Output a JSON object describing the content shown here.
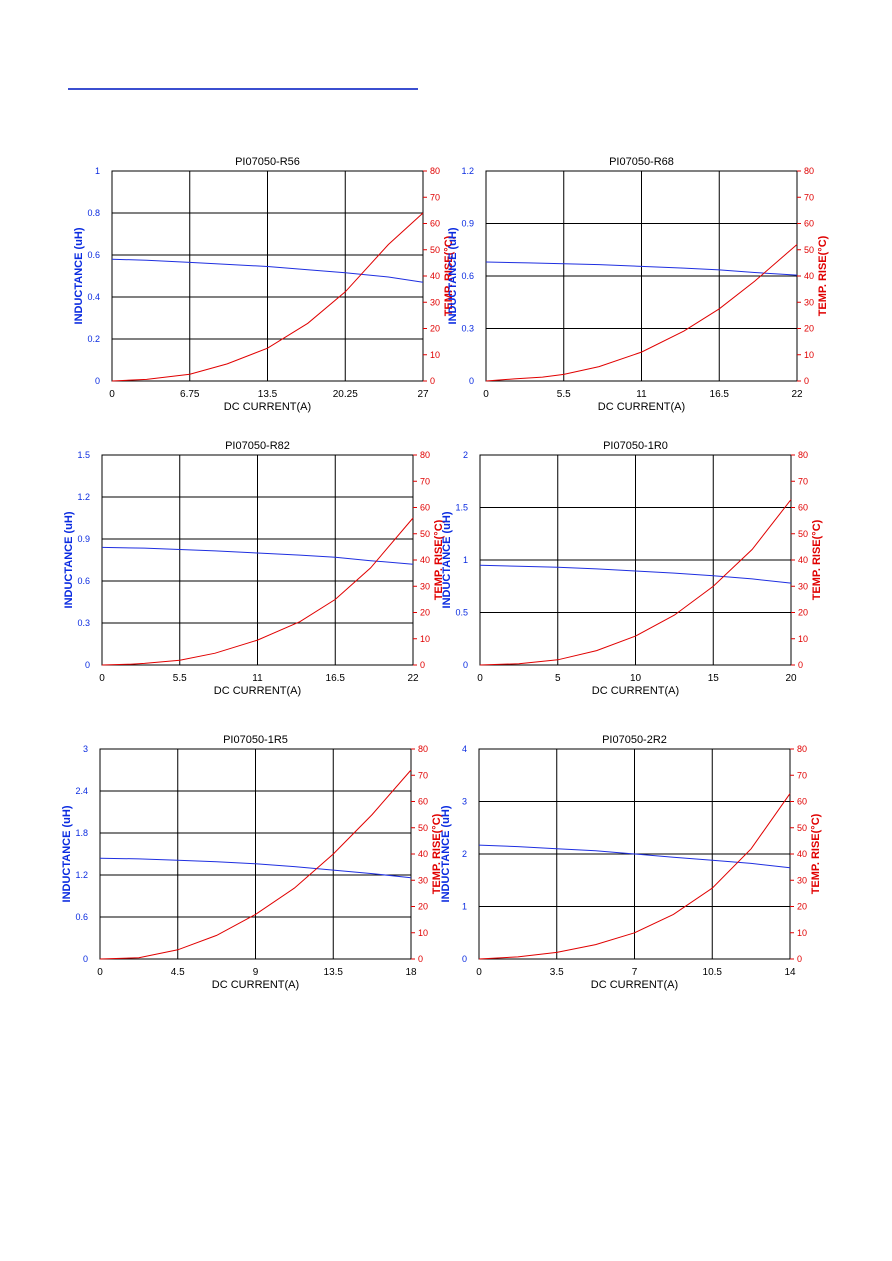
{
  "chart_data": [
    {
      "type": "line",
      "title": "PI07050-R56",
      "xlabel": "DC CURRENT(A)",
      "ylabel": "INDUCTANCE (uH)",
      "ylabel_right": "TEMP. RISE(°C)",
      "xlim": [
        0,
        27
      ],
      "ylim": [
        0,
        1
      ],
      "ylim_right": [
        0,
        80
      ],
      "x_ticks": [
        "0",
        "6.75",
        "13.5",
        "20.25",
        "27"
      ],
      "y_ticks": [
        "0",
        "0.2",
        "0.4",
        "0.6",
        "0.8",
        "1"
      ],
      "y_ticks_right": [
        "0",
        "10",
        "20",
        "30",
        "40",
        "50",
        "60",
        "70",
        "80"
      ],
      "grid": true,
      "series": [
        {
          "axis": "left",
          "color": "#1f2fe0",
          "x": [
            0,
            3,
            6.75,
            10,
            13.5,
            17,
            20.25,
            24,
            27
          ],
          "values": [
            0.58,
            0.575,
            0.565,
            0.555,
            0.545,
            0.53,
            0.515,
            0.495,
            0.47
          ]
        },
        {
          "axis": "right",
          "color": "#e00000",
          "x": [
            0,
            3,
            6.75,
            10,
            13.5,
            17,
            20.25,
            24,
            27
          ],
          "values": [
            0,
            0.6,
            2.6,
            6.5,
            12.5,
            22,
            34,
            52,
            64
          ]
        }
      ]
    },
    {
      "type": "line",
      "title": "PI07050-R68",
      "xlabel": "DC CURRENT(A)",
      "ylabel": "INDUCTANCE (uH)",
      "ylabel_right": "TEMP. RISE(°C)",
      "xlim": [
        0,
        22
      ],
      "ylim": [
        0,
        1.2
      ],
      "ylim_right": [
        0,
        80
      ],
      "x_ticks": [
        "0",
        "5.5",
        "11",
        "16.5",
        "22"
      ],
      "y_ticks": [
        "0",
        "0.3",
        "0.6",
        "0.9",
        "1.2"
      ],
      "y_ticks_right": [
        "0",
        "10",
        "20",
        "30",
        "40",
        "50",
        "60",
        "70",
        "80"
      ],
      "grid": true,
      "series": [
        {
          "axis": "left",
          "color": "#1f2fe0",
          "x": [
            0,
            3,
            5.5,
            8,
            11,
            14,
            16.5,
            19,
            22
          ],
          "values": [
            0.68,
            0.675,
            0.67,
            0.665,
            0.655,
            0.645,
            0.635,
            0.62,
            0.605
          ]
        },
        {
          "axis": "right",
          "color": "#e00000",
          "x": [
            0,
            2,
            4,
            5.5,
            8,
            11,
            14,
            16.5,
            19,
            22
          ],
          "values": [
            0,
            0.8,
            1.5,
            2.5,
            5.5,
            11,
            19,
            27.5,
            38,
            52
          ]
        }
      ]
    },
    {
      "type": "line",
      "title": "PI07050-R82",
      "xlabel": "DC CURRENT(A)",
      "ylabel": "INDUCTANCE (uH)",
      "ylabel_right": "TEMP. RISE(°C)",
      "xlim": [
        0,
        22
      ],
      "ylim": [
        0,
        1.5
      ],
      "ylim_right": [
        0,
        80
      ],
      "x_ticks": [
        "0",
        "5.5",
        "11",
        "16.5",
        "22"
      ],
      "y_ticks": [
        "0",
        "0.3",
        "0.6",
        "0.9",
        "1.2",
        "1.5"
      ],
      "y_ticks_right": [
        "0",
        "10",
        "20",
        "30",
        "40",
        "50",
        "60",
        "70",
        "80"
      ],
      "grid": true,
      "series": [
        {
          "axis": "left",
          "color": "#1f2fe0",
          "x": [
            0,
            3,
            5.5,
            8,
            11,
            14,
            16.5,
            19,
            22
          ],
          "values": [
            0.84,
            0.835,
            0.825,
            0.815,
            0.8,
            0.785,
            0.77,
            0.745,
            0.72
          ]
        },
        {
          "axis": "right",
          "color": "#e00000",
          "x": [
            0,
            2,
            3,
            5.5,
            8,
            11,
            14,
            16.5,
            19,
            22
          ],
          "values": [
            0,
            0.3,
            0.6,
            1.8,
            4.5,
            9.5,
            16.5,
            25,
            37,
            56
          ]
        }
      ]
    },
    {
      "type": "line",
      "title": "PI07050-1R0",
      "xlabel": "DC CURRENT(A)",
      "ylabel": "INDUCTANCE (uH)",
      "ylabel_right": "TEMP. RISE(°C)",
      "xlim": [
        0,
        20
      ],
      "ylim": [
        0,
        2
      ],
      "ylim_right": [
        0,
        80
      ],
      "x_ticks": [
        "0",
        "5",
        "10",
        "15",
        "20"
      ],
      "y_ticks": [
        "0",
        "0.5",
        "1",
        "1.5",
        "2"
      ],
      "y_ticks_right": [
        "0",
        "10",
        "20",
        "30",
        "40",
        "50",
        "60",
        "70",
        "80"
      ],
      "grid": true,
      "series": [
        {
          "axis": "left",
          "color": "#1f2fe0",
          "x": [
            0,
            2.5,
            5,
            7.5,
            10,
            12.5,
            15,
            17.5,
            20
          ],
          "values": [
            0.95,
            0.94,
            0.93,
            0.915,
            0.895,
            0.875,
            0.85,
            0.82,
            0.78
          ]
        },
        {
          "axis": "right",
          "color": "#e00000",
          "x": [
            0,
            2.5,
            5,
            7.5,
            10,
            12.5,
            15,
            17.5,
            20
          ],
          "values": [
            0,
            0.5,
            2,
            5.5,
            11,
            19,
            30,
            44,
            63
          ]
        }
      ]
    },
    {
      "type": "line",
      "title": "PI07050-1R5",
      "xlabel": "DC CURRENT(A)",
      "ylabel": "INDUCTANCE (uH)",
      "ylabel_right": "TEMP. RISE(°C)",
      "xlim": [
        0,
        18
      ],
      "ylim": [
        0,
        3
      ],
      "ylim_right": [
        0,
        80
      ],
      "x_ticks": [
        "0",
        "4.5",
        "9",
        "13.5",
        "18"
      ],
      "y_ticks": [
        "0",
        "0.6",
        "1.2",
        "1.8",
        "2.4",
        "3"
      ],
      "y_ticks_right": [
        "0",
        "10",
        "20",
        "30",
        "40",
        "50",
        "60",
        "70",
        "80"
      ],
      "grid": true,
      "series": [
        {
          "axis": "left",
          "color": "#1f2fe0",
          "x": [
            0,
            2.25,
            4.5,
            6.75,
            9,
            11.25,
            13.5,
            15.75,
            18
          ],
          "values": [
            1.44,
            1.43,
            1.41,
            1.39,
            1.36,
            1.32,
            1.27,
            1.22,
            1.16
          ]
        },
        {
          "axis": "right",
          "color": "#e00000",
          "x": [
            0,
            2.25,
            4.5,
            6.75,
            9,
            11.25,
            13.5,
            15.75,
            18
          ],
          "values": [
            0,
            0.5,
            3.5,
            9,
            17,
            27,
            40,
            55,
            72
          ]
        }
      ]
    },
    {
      "type": "line",
      "title": "PI07050-2R2",
      "xlabel": "DC CURRENT(A)",
      "ylabel": "INDUCTANCE (uH)",
      "ylabel_right": "TEMP. RISE(°C)",
      "xlim": [
        0,
        14
      ],
      "ylim": [
        0,
        4
      ],
      "ylim_right": [
        0,
        80
      ],
      "x_ticks": [
        "0",
        "3.5",
        "7",
        "10.5",
        "14"
      ],
      "y_ticks": [
        "0",
        "1",
        "2",
        "3",
        "4"
      ],
      "y_ticks_right": [
        "0",
        "10",
        "20",
        "30",
        "40",
        "50",
        "60",
        "70",
        "80"
      ],
      "grid": true,
      "series": [
        {
          "axis": "left",
          "color": "#1f2fe0",
          "x": [
            0,
            1.75,
            3.5,
            5.25,
            7,
            8.75,
            10.5,
            12.25,
            14
          ],
          "values": [
            2.17,
            2.14,
            2.1,
            2.06,
            2.0,
            1.94,
            1.88,
            1.82,
            1.74
          ]
        },
        {
          "axis": "right",
          "color": "#e00000",
          "x": [
            0,
            1.75,
            3.5,
            5.25,
            7,
            8.75,
            10.5,
            12.25,
            14
          ],
          "values": [
            0,
            0.8,
            2.5,
            5.5,
            10,
            17,
            27,
            42,
            63
          ]
        }
      ]
    }
  ]
}
